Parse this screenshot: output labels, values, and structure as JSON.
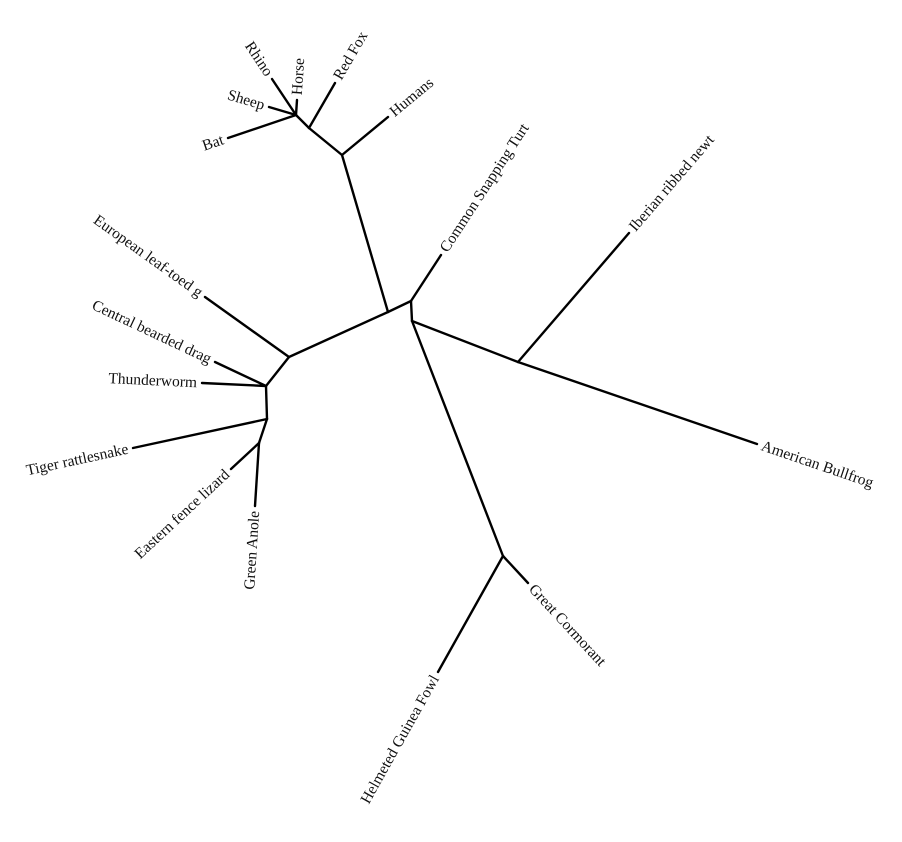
{
  "diagram": {
    "type": "unrooted-phylogenetic-tree",
    "line_color": "#000000",
    "background": "#ffffff",
    "taxa": {
      "rhino": "Rhino",
      "horse": "Horse",
      "red_fox": "Red Fox",
      "sheep": "Sheep",
      "humans": "Humans",
      "bat": "Bat",
      "turtle": "Common Snapping Turt",
      "newt": "Iberian ribbed newt",
      "gecko": "European leaf-toed g",
      "dragon": "Central bearded drag",
      "thunderworm": "Thunderworm",
      "rattlesnake": "Tiger rattlesnake",
      "fence_lizard": "Eastern fence lizard",
      "anole": "Green Anole",
      "bullfrog": "American Bullfrog",
      "cormorant": "Great Cormorant",
      "guinea_fowl": "Helmeted Guinea Fowl"
    },
    "topology": "(((((rhino,horse,sheep,bat),red_fox),humans),((gecko,((dragon,thunderworm),(rattlesnake,(fence_lizard,anole)))))),(turtle,((newt,bullfrog),(cormorant,guinea_fowl))));"
  }
}
